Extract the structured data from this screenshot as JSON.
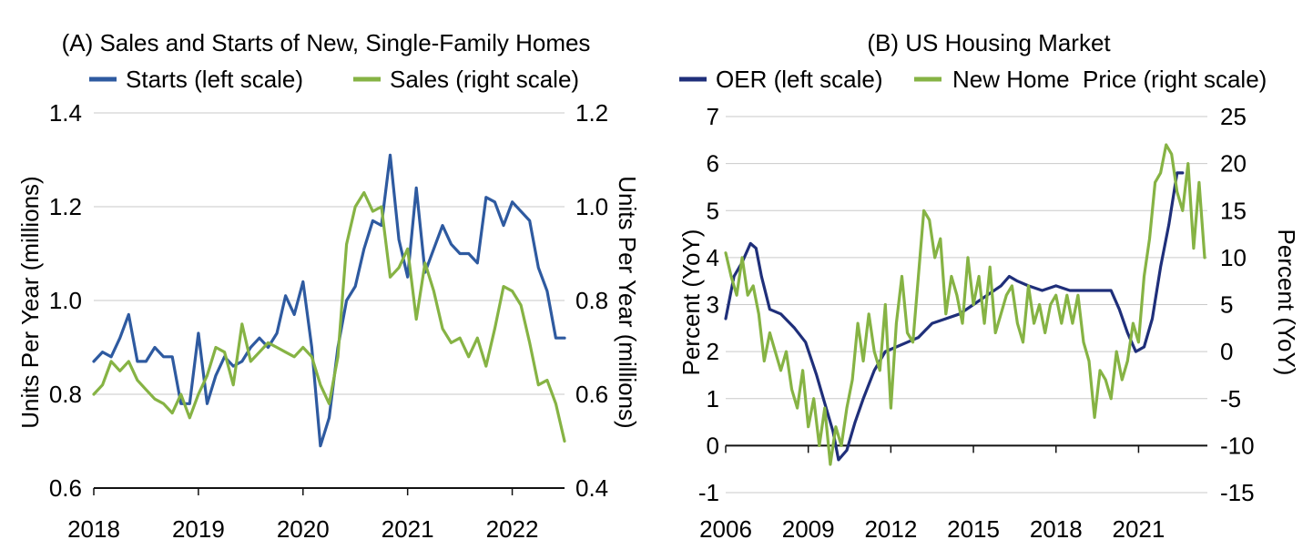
{
  "chart_data": [
    {
      "type": "line",
      "title": "(A) Sales and Starts of New, Single-Family Homes",
      "xlabel": "",
      "ylabel": "Units Per Year (millions)",
      "ylabel_right": "Units Per Year (millions)",
      "ylim": [
        0.6,
        1.4
      ],
      "ylim_right": [
        0.4,
        1.2
      ],
      "yticks": [
        0.6,
        0.8,
        1.0,
        1.2,
        1.4
      ],
      "ytick_labels": [
        "0.6",
        "0.8",
        "1.0",
        "1.2",
        "1.4"
      ],
      "yticks_right": [
        0.4,
        0.6,
        0.8,
        1.0,
        1.2
      ],
      "ytick_labels_right": [
        "0.4",
        "0.6",
        "0.8",
        "1.0",
        "1.2"
      ],
      "xlim": [
        "2018-01",
        "2022-07"
      ],
      "xticks": [
        "2018-01",
        "2019-01",
        "2020-01",
        "2021-01",
        "2022-01"
      ],
      "xtick_labels": [
        "2018",
        "2019",
        "2020",
        "2021",
        "2022"
      ],
      "grid": true,
      "legend": "top",
      "series": [
        {
          "name": "Starts (left scale)",
          "axis": "left",
          "color": "#2e5aa0",
          "x": [
            "2018-01",
            "2018-02",
            "2018-03",
            "2018-04",
            "2018-05",
            "2018-06",
            "2018-07",
            "2018-08",
            "2018-09",
            "2018-10",
            "2018-11",
            "2018-12",
            "2019-01",
            "2019-02",
            "2019-03",
            "2019-04",
            "2019-05",
            "2019-06",
            "2019-07",
            "2019-08",
            "2019-09",
            "2019-10",
            "2019-11",
            "2019-12",
            "2020-01",
            "2020-02",
            "2020-03",
            "2020-04",
            "2020-05",
            "2020-06",
            "2020-07",
            "2020-08",
            "2020-09",
            "2020-10",
            "2020-11",
            "2020-12",
            "2021-01",
            "2021-02",
            "2021-03",
            "2021-04",
            "2021-05",
            "2021-06",
            "2021-07",
            "2021-08",
            "2021-09",
            "2021-10",
            "2021-11",
            "2021-12",
            "2022-01",
            "2022-02",
            "2022-03",
            "2022-04",
            "2022-05",
            "2022-06",
            "2022-07"
          ],
          "y": [
            0.87,
            0.89,
            0.88,
            0.92,
            0.97,
            0.87,
            0.87,
            0.9,
            0.88,
            0.88,
            0.78,
            0.78,
            0.93,
            0.78,
            0.84,
            0.88,
            0.86,
            0.87,
            0.9,
            0.92,
            0.9,
            0.93,
            1.01,
            0.97,
            1.04,
            0.9,
            0.69,
            0.75,
            0.9,
            1.0,
            1.03,
            1.11,
            1.17,
            1.16,
            1.31,
            1.13,
            1.05,
            1.24,
            1.06,
            1.11,
            1.16,
            1.12,
            1.1,
            1.1,
            1.08,
            1.22,
            1.21,
            1.16,
            1.21,
            1.19,
            1.17,
            1.07,
            1.02,
            0.92,
            0.92
          ]
        },
        {
          "name": "Sales (right scale)",
          "axis": "right",
          "color": "#86b344",
          "x": [
            "2018-01",
            "2018-02",
            "2018-03",
            "2018-04",
            "2018-05",
            "2018-06",
            "2018-07",
            "2018-08",
            "2018-09",
            "2018-10",
            "2018-11",
            "2018-12",
            "2019-01",
            "2019-02",
            "2019-03",
            "2019-04",
            "2019-05",
            "2019-06",
            "2019-07",
            "2019-08",
            "2019-09",
            "2019-10",
            "2019-11",
            "2019-12",
            "2020-01",
            "2020-02",
            "2020-03",
            "2020-04",
            "2020-05",
            "2020-06",
            "2020-07",
            "2020-08",
            "2020-09",
            "2020-10",
            "2020-11",
            "2020-12",
            "2021-01",
            "2021-02",
            "2021-03",
            "2021-04",
            "2021-05",
            "2021-06",
            "2021-07",
            "2021-08",
            "2021-09",
            "2021-10",
            "2021-11",
            "2021-12",
            "2022-01",
            "2022-02",
            "2022-03",
            "2022-04",
            "2022-05",
            "2022-06",
            "2022-07"
          ],
          "y": [
            0.6,
            0.62,
            0.67,
            0.65,
            0.67,
            0.63,
            0.61,
            0.59,
            0.58,
            0.56,
            0.6,
            0.55,
            0.6,
            0.64,
            0.7,
            0.69,
            0.62,
            0.75,
            0.67,
            0.69,
            0.71,
            0.7,
            0.69,
            0.68,
            0.7,
            0.68,
            0.62,
            0.58,
            0.68,
            0.92,
            1.0,
            1.03,
            0.99,
            1.0,
            0.85,
            0.87,
            0.91,
            0.76,
            0.88,
            0.82,
            0.74,
            0.71,
            0.72,
            0.68,
            0.72,
            0.66,
            0.74,
            0.83,
            0.82,
            0.79,
            0.71,
            0.62,
            0.63,
            0.58,
            0.5
          ]
        }
      ]
    },
    {
      "type": "line",
      "title": "(B) US Housing Market",
      "xlabel": "",
      "ylabel": "Percent (YoY)",
      "ylabel_right": "Percent (YoY)",
      "ylim": [
        -1,
        7
      ],
      "ylim_right": [
        -15,
        25
      ],
      "yticks": [
        -1,
        0,
        1,
        2,
        3,
        4,
        5,
        6,
        7
      ],
      "ytick_labels": [
        "-1",
        "0",
        "1",
        "2",
        "3",
        "4",
        "5",
        "6",
        "7"
      ],
      "yticks_right": [
        -15,
        -10,
        -5,
        0,
        5,
        10,
        15,
        20,
        25
      ],
      "ytick_labels_right": [
        "-15",
        "-10",
        "-5",
        "0",
        "5",
        "10",
        "15",
        "20",
        "25"
      ],
      "xlim": [
        2006.0,
        2023.5
      ],
      "xticks": [
        2006,
        2009,
        2012,
        2015,
        2018,
        2021
      ],
      "xtick_labels": [
        "2006",
        "2009",
        "2012",
        "2015",
        "2018",
        "2021"
      ],
      "grid": true,
      "legend": "top",
      "series": [
        {
          "name": "OER (left scale)",
          "axis": "left",
          "color": "#1f2f7a",
          "x": [
            2006.0,
            2006.3,
            2006.6,
            2006.9,
            2007.1,
            2007.3,
            2007.6,
            2008.0,
            2008.5,
            2008.9,
            2009.3,
            2009.6,
            2009.9,
            2010.1,
            2010.4,
            2010.7,
            2011.0,
            2011.4,
            2011.8,
            2012.2,
            2012.6,
            2013.0,
            2013.5,
            2014.0,
            2014.5,
            2015.0,
            2015.5,
            2016.0,
            2016.3,
            2016.6,
            2017.0,
            2017.5,
            2018.0,
            2018.5,
            2019.0,
            2019.5,
            2020.0,
            2020.3,
            2020.6,
            2020.9,
            2021.2,
            2021.5,
            2021.8,
            2022.1,
            2022.4,
            2022.6
          ],
          "y": [
            2.7,
            3.6,
            3.9,
            4.3,
            4.2,
            3.6,
            2.9,
            2.8,
            2.5,
            2.2,
            1.5,
            0.9,
            0.3,
            -0.3,
            -0.1,
            0.5,
            1.0,
            1.6,
            2.0,
            2.1,
            2.2,
            2.3,
            2.6,
            2.7,
            2.8,
            3.0,
            3.2,
            3.4,
            3.6,
            3.5,
            3.4,
            3.3,
            3.4,
            3.3,
            3.3,
            3.3,
            3.3,
            2.9,
            2.4,
            2.0,
            2.1,
            2.7,
            3.8,
            4.7,
            5.8,
            5.8
          ]
        },
        {
          "name": "New Home  Price (right scale)",
          "axis": "right",
          "color": "#86b344",
          "x": [
            2006.0,
            2006.2,
            2006.4,
            2006.6,
            2006.8,
            2007.0,
            2007.2,
            2007.4,
            2007.6,
            2007.8,
            2008.0,
            2008.2,
            2008.4,
            2008.6,
            2008.8,
            2009.0,
            2009.2,
            2009.4,
            2009.6,
            2009.8,
            2010.0,
            2010.2,
            2010.4,
            2010.6,
            2010.8,
            2011.0,
            2011.2,
            2011.4,
            2011.6,
            2011.8,
            2012.0,
            2012.2,
            2012.4,
            2012.6,
            2012.8,
            2013.0,
            2013.2,
            2013.4,
            2013.6,
            2013.8,
            2014.0,
            2014.2,
            2014.4,
            2014.6,
            2014.8,
            2015.0,
            2015.2,
            2015.4,
            2015.6,
            2015.8,
            2016.0,
            2016.2,
            2016.4,
            2016.6,
            2016.8,
            2017.0,
            2017.2,
            2017.4,
            2017.6,
            2017.8,
            2018.0,
            2018.2,
            2018.4,
            2018.6,
            2018.8,
            2019.0,
            2019.2,
            2019.4,
            2019.6,
            2019.8,
            2020.0,
            2020.2,
            2020.4,
            2020.6,
            2020.8,
            2021.0,
            2021.2,
            2021.4,
            2021.6,
            2021.8,
            2022.0,
            2022.2,
            2022.4,
            2022.6,
            2022.8,
            2023.0,
            2023.2,
            2023.4
          ],
          "y": [
            10.5,
            8.0,
            6.0,
            10.0,
            6.0,
            7.0,
            4.0,
            -1.0,
            2.0,
            0.0,
            -2.0,
            0.0,
            -4.0,
            -6.0,
            -2.0,
            -8.0,
            -5.0,
            -10.0,
            -6.0,
            -12.0,
            -8.0,
            -10.0,
            -6.0,
            -3.0,
            3.0,
            -1.0,
            4.0,
            0.0,
            -2.0,
            5.0,
            -6.0,
            3.0,
            8.0,
            2.0,
            1.0,
            8.0,
            15.0,
            14.0,
            10.0,
            12.0,
            4.0,
            8.0,
            6.0,
            3.0,
            10.0,
            5.0,
            8.0,
            3.0,
            9.0,
            2.0,
            4.0,
            6.0,
            7.0,
            3.0,
            1.0,
            7.0,
            3.0,
            5.0,
            2.0,
            5.0,
            6.0,
            3.0,
            6.0,
            3.0,
            6.0,
            1.0,
            -1.0,
            -7.0,
            -2.0,
            -3.0,
            -5.0,
            0.0,
            -3.0,
            -1.0,
            3.0,
            1.0,
            8.0,
            12.0,
            18.0,
            19.0,
            22.0,
            21.0,
            17.0,
            15.0,
            20.0,
            11.0,
            18.0,
            10.0
          ]
        }
      ]
    }
  ]
}
